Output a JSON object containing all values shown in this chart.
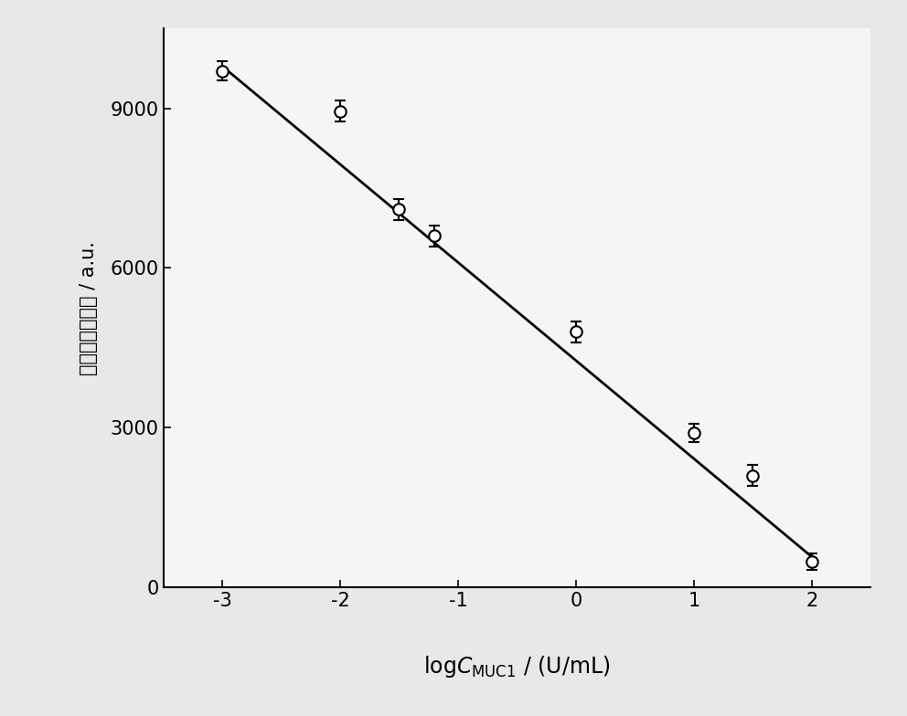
{
  "x_data": [
    -3,
    -2,
    -1.5,
    -1.2,
    0,
    1,
    1.5,
    2
  ],
  "y_data": [
    9700,
    8950,
    7100,
    6600,
    4800,
    2900,
    2100,
    480
  ],
  "y_err": [
    180,
    200,
    200,
    200,
    200,
    180,
    200,
    150
  ],
  "fit_x": [
    -3.0,
    2.0
  ],
  "fit_slope": -1845.0,
  "fit_intercept": 4260.0,
  "xlabel_unit": " / (U/mL)",
  "ylabel_chinese": "电化学发光强度",
  "ylabel_english": " / a.u.",
  "xlim": [
    -3.5,
    2.5
  ],
  "ylim": [
    0,
    10500
  ],
  "yticks": [
    0,
    3000,
    6000,
    9000
  ],
  "xticks": [
    -3,
    -2,
    -1,
    0,
    1,
    2
  ],
  "marker_facecolor": "white",
  "marker_edgecolor": "black",
  "marker_size": 9,
  "marker_edgewidth": 1.5,
  "line_color": "black",
  "line_width": 2.0,
  "errorbar_color": "black",
  "errorbar_capsize": 4,
  "errorbar_linewidth": 1.5,
  "background_color": "#e8e8e8",
  "plot_bg_color": "#f5f5f5",
  "label_fontsize": 17,
  "tick_fontsize": 15,
  "ylabel_fontsize": 15,
  "spine_linewidth": 1.5
}
